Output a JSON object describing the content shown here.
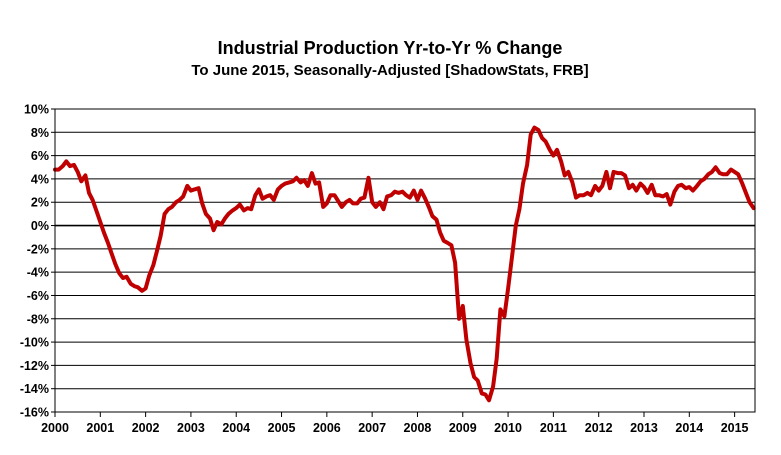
{
  "chart_data": {
    "type": "line",
    "title": "Industrial Production Yr-to-Yr % Change",
    "subtitle": "To June 2015, Seasonally-Adjusted [ShadowStats, FRB]",
    "xlabel": "",
    "ylabel": "",
    "xlim": [
      2000.0,
      2015.45
    ],
    "ylim": [
      -16,
      10
    ],
    "y_ticks": [
      10,
      8,
      6,
      4,
      2,
      0,
      -2,
      -4,
      -6,
      -8,
      -10,
      -12,
      -14,
      -16
    ],
    "y_tick_labels": [
      "10%",
      "8%",
      "6%",
      "4%",
      "2%",
      "0%",
      "-2%",
      "-4%",
      "-6%",
      "-8%",
      "-10%",
      "-12%",
      "-14%",
      "-16%"
    ],
    "x_ticks": [
      2000,
      2001,
      2002,
      2003,
      2004,
      2005,
      2006,
      2007,
      2008,
      2009,
      2010,
      2011,
      2012,
      2013,
      2014,
      2015
    ],
    "x_tick_labels": [
      "2000",
      "2001",
      "2002",
      "2003",
      "2004",
      "2005",
      "2006",
      "2007",
      "2008",
      "2009",
      "2010",
      "2011",
      "2012",
      "2013",
      "2014",
      "2015"
    ],
    "grid": true,
    "series": [
      {
        "name": "Industrial Production Yr-to-Yr % Change",
        "color": "#c00000",
        "x": [
          2000.0,
          2000.08,
          2000.17,
          2000.25,
          2000.33,
          2000.42,
          2000.5,
          2000.58,
          2000.67,
          2000.75,
          2000.83,
          2000.92,
          2001.0,
          2001.08,
          2001.17,
          2001.25,
          2001.33,
          2001.42,
          2001.5,
          2001.58,
          2001.67,
          2001.75,
          2001.83,
          2001.92,
          2002.0,
          2002.08,
          2002.17,
          2002.25,
          2002.33,
          2002.42,
          2002.5,
          2002.58,
          2002.67,
          2002.75,
          2002.83,
          2002.92,
          2003.0,
          2003.08,
          2003.17,
          2003.25,
          2003.33,
          2003.42,
          2003.5,
          2003.58,
          2003.67,
          2003.75,
          2003.83,
          2003.92,
          2004.0,
          2004.08,
          2004.17,
          2004.25,
          2004.33,
          2004.42,
          2004.5,
          2004.58,
          2004.67,
          2004.75,
          2004.83,
          2004.92,
          2005.0,
          2005.08,
          2005.17,
          2005.25,
          2005.33,
          2005.42,
          2005.5,
          2005.58,
          2005.67,
          2005.75,
          2005.83,
          2005.92,
          2006.0,
          2006.08,
          2006.17,
          2006.25,
          2006.33,
          2006.42,
          2006.5,
          2006.58,
          2006.67,
          2006.75,
          2006.83,
          2006.92,
          2007.0,
          2007.08,
          2007.17,
          2007.25,
          2007.33,
          2007.42,
          2007.5,
          2007.58,
          2007.67,
          2007.75,
          2007.83,
          2007.92,
          2008.0,
          2008.08,
          2008.17,
          2008.25,
          2008.33,
          2008.42,
          2008.5,
          2008.58,
          2008.67,
          2008.75,
          2008.83,
          2008.92,
          2009.0,
          2009.08,
          2009.17,
          2009.25,
          2009.33,
          2009.42,
          2009.5,
          2009.58,
          2009.67,
          2009.75,
          2009.83,
          2009.92,
          2010.0,
          2010.08,
          2010.17,
          2010.25,
          2010.33,
          2010.42,
          2010.5,
          2010.58,
          2010.67,
          2010.75,
          2010.83,
          2010.92,
          2011.0,
          2011.08,
          2011.17,
          2011.25,
          2011.33,
          2011.42,
          2011.5,
          2011.58,
          2011.67,
          2011.75,
          2011.83,
          2011.92,
          2012.0,
          2012.08,
          2012.17,
          2012.25,
          2012.33,
          2012.42,
          2012.5,
          2012.58,
          2012.67,
          2012.75,
          2012.83,
          2012.92,
          2013.0,
          2013.08,
          2013.17,
          2013.25,
          2013.33,
          2013.42,
          2013.5,
          2013.58,
          2013.67,
          2013.75,
          2013.83,
          2013.92,
          2014.0,
          2014.08,
          2014.17,
          2014.25,
          2014.33,
          2014.42,
          2014.5,
          2014.58,
          2014.67,
          2014.75,
          2014.83,
          2014.92,
          2015.0,
          2015.08,
          2015.17,
          2015.25,
          2015.33,
          2015.42
        ],
        "y": [
          4.8,
          4.8,
          5.1,
          5.5,
          5.1,
          5.2,
          4.6,
          3.8,
          4.3,
          2.8,
          2.2,
          1.2,
          0.3,
          -0.6,
          -1.5,
          -2.4,
          -3.3,
          -4.1,
          -4.5,
          -4.4,
          -5.0,
          -5.2,
          -5.3,
          -5.6,
          -5.4,
          -4.3,
          -3.4,
          -2.2,
          -0.9,
          1.0,
          1.4,
          1.6,
          2.0,
          2.2,
          2.5,
          3.4,
          3.0,
          3.1,
          3.2,
          1.9,
          1.0,
          0.6,
          -0.4,
          0.3,
          0.1,
          0.6,
          1.0,
          1.3,
          1.5,
          1.8,
          1.3,
          1.5,
          1.4,
          2.6,
          3.1,
          2.3,
          2.5,
          2.6,
          2.2,
          3.1,
          3.4,
          3.6,
          3.7,
          3.8,
          4.1,
          3.7,
          3.9,
          3.4,
          4.5,
          3.6,
          3.7,
          1.6,
          1.9,
          2.6,
          2.6,
          2.1,
          1.6,
          2.0,
          2.2,
          1.9,
          1.9,
          2.3,
          2.4,
          4.1,
          2.0,
          1.6,
          2.0,
          1.4,
          2.5,
          2.6,
          2.9,
          2.8,
          2.9,
          2.6,
          2.4,
          3.0,
          2.2,
          3.0,
          2.3,
          1.6,
          0.8,
          0.5,
          -0.6,
          -1.3,
          -1.5,
          -1.7,
          -3.2,
          -8.0,
          -6.9,
          -9.8,
          -11.8,
          -13.0,
          -13.3,
          -14.4,
          -14.5,
          -15.0,
          -13.8,
          -11.4,
          -7.2,
          -7.8,
          -5.4,
          -2.9,
          0.0,
          1.4,
          3.6,
          5.2,
          7.8,
          8.4,
          8.2,
          7.5,
          7.2,
          6.5,
          6.0,
          6.5,
          5.5,
          4.3,
          4.6,
          3.7,
          2.4,
          2.6,
          2.6,
          2.8,
          2.6,
          3.4,
          3.0,
          3.4,
          4.6,
          3.2,
          4.6,
          4.5,
          4.5,
          4.3,
          3.2,
          3.5,
          3.0,
          3.6,
          3.3,
          2.8,
          3.5,
          2.6,
          2.6,
          2.5,
          2.7,
          1.8,
          2.9,
          3.4,
          3.5,
          3.2,
          3.3,
          3.0,
          3.4,
          3.8,
          4.0,
          4.4,
          4.6,
          5.0,
          4.5,
          4.4,
          4.4,
          4.8,
          4.6,
          4.4,
          3.6,
          2.8,
          2.0,
          1.5
        ]
      }
    ]
  }
}
